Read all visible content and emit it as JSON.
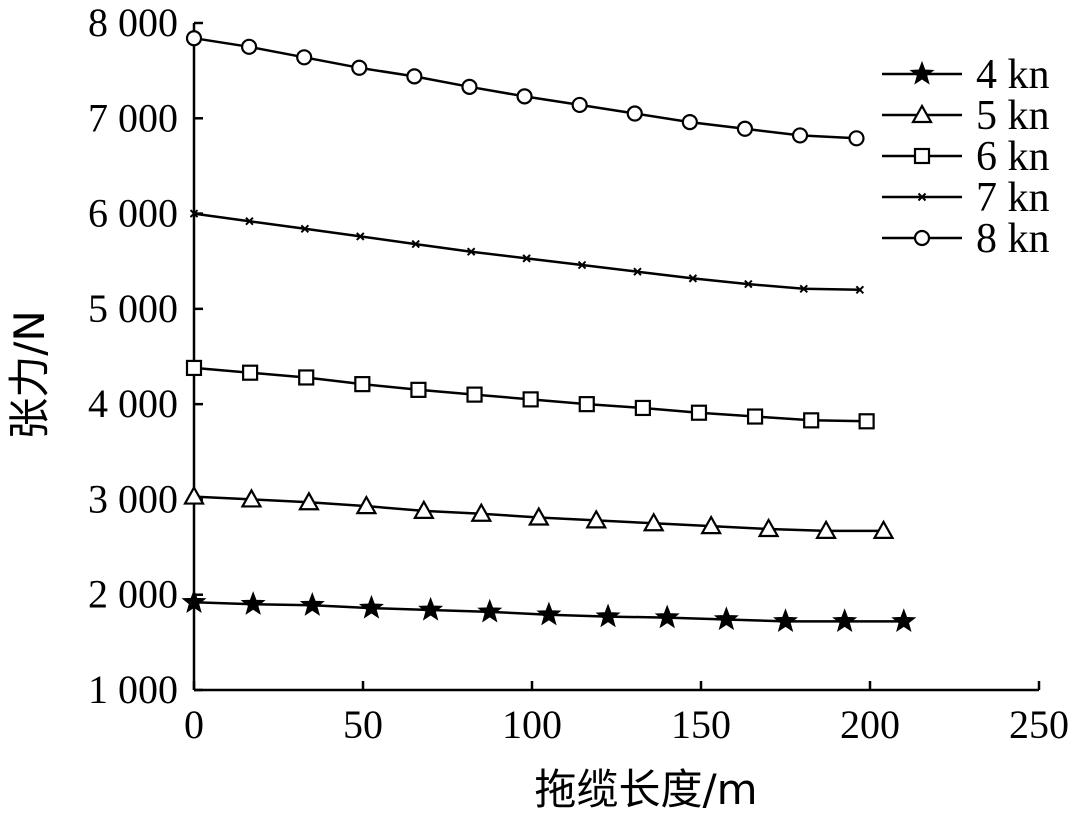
{
  "chart_data": {
    "type": "line",
    "xlabel": "拖缆长度/m",
    "ylabel": "张力/N",
    "xlim": [
      0,
      250
    ],
    "ylim": [
      1000,
      8000
    ],
    "xticks": [
      0,
      50,
      100,
      150,
      200,
      250
    ],
    "xtick_labels": [
      "0",
      "50",
      "100",
      "150",
      "200",
      "250"
    ],
    "yticks": [
      1000,
      2000,
      3000,
      4000,
      5000,
      6000,
      7000,
      8000
    ],
    "ytick_labels": [
      "1 000",
      "2 000",
      "3 000",
      "4 000",
      "5 000",
      "6 000",
      "7 000",
      "8 000"
    ],
    "grid": false,
    "legend_position": "top-right",
    "series": [
      {
        "name": "4 kn",
        "marker": "star",
        "x": [
          0,
          17.5,
          35,
          52.5,
          70,
          87.5,
          105,
          122.5,
          140,
          157.5,
          175,
          192.5,
          210
        ],
        "y": [
          1920,
          1900,
          1890,
          1860,
          1840,
          1820,
          1790,
          1770,
          1760,
          1740,
          1720,
          1720,
          1720
        ]
      },
      {
        "name": "5 kn",
        "marker": "triangle",
        "x": [
          0,
          17,
          34,
          51,
          68,
          85,
          102,
          119,
          136,
          153,
          170,
          187,
          204
        ],
        "y": [
          3030,
          3000,
          2970,
          2930,
          2880,
          2850,
          2810,
          2780,
          2750,
          2720,
          2690,
          2670,
          2670
        ]
      },
      {
        "name": "6 kn",
        "marker": "square",
        "x": [
          0,
          16.6,
          33.2,
          49.8,
          66.4,
          83,
          99.6,
          116.2,
          132.8,
          149.4,
          166,
          182.6,
          199
        ],
        "y": [
          4380,
          4330,
          4280,
          4210,
          4150,
          4100,
          4050,
          4000,
          3960,
          3910,
          3870,
          3830,
          3820
        ]
      },
      {
        "name": "7 kn",
        "marker": "x",
        "x": [
          0,
          16.4,
          32.8,
          49.2,
          65.6,
          82,
          98.4,
          114.8,
          131.2,
          147.6,
          164,
          180.4,
          197
        ],
        "y": [
          6000,
          5920,
          5840,
          5760,
          5680,
          5600,
          5530,
          5460,
          5390,
          5320,
          5260,
          5210,
          5200
        ]
      },
      {
        "name": "8 kn",
        "marker": "circle",
        "x": [
          0,
          16.3,
          32.6,
          48.9,
          65.2,
          81.5,
          97.8,
          114.1,
          130.4,
          146.7,
          163,
          179.3,
          196
        ],
        "y": [
          7840,
          7750,
          7640,
          7530,
          7440,
          7330,
          7230,
          7140,
          7050,
          6960,
          6890,
          6820,
          6790
        ]
      }
    ]
  }
}
